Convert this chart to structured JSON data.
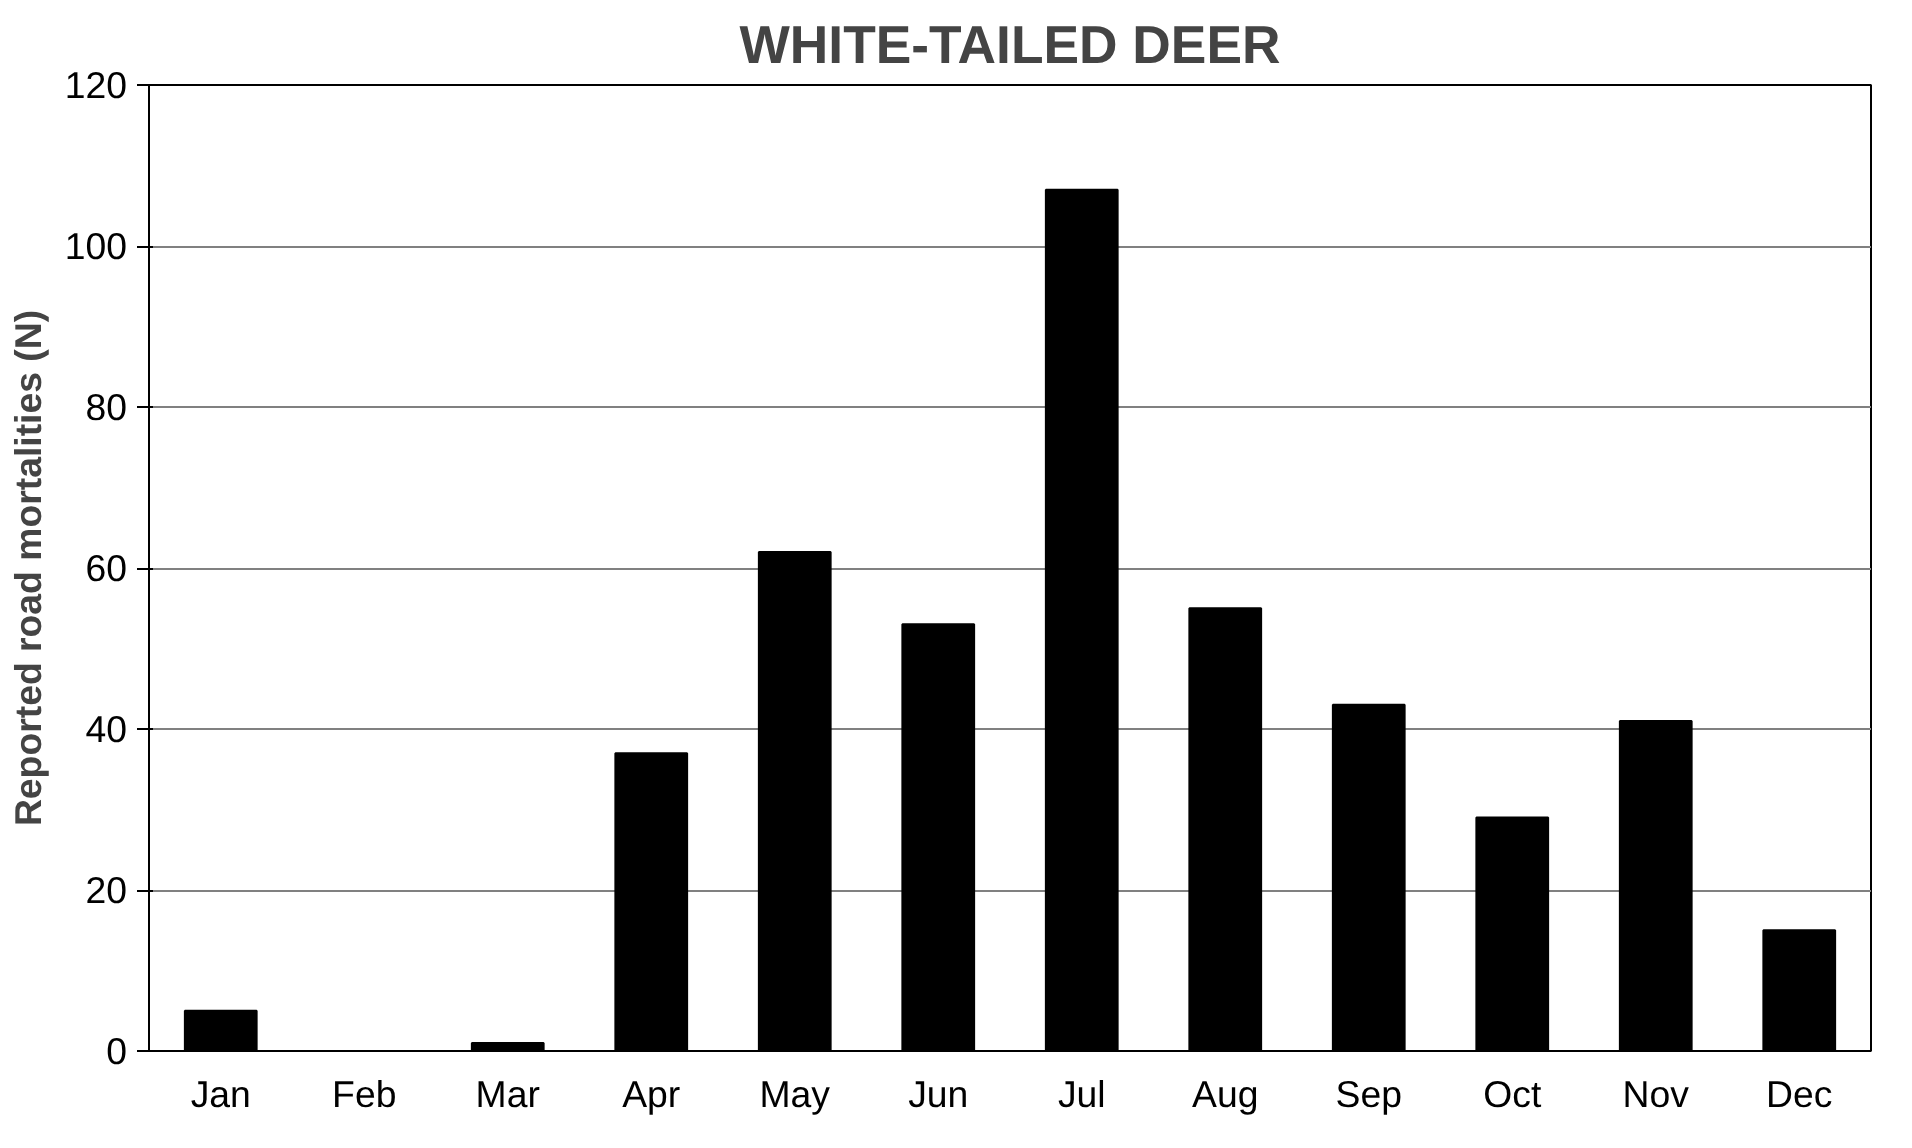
{
  "chart_data": {
    "type": "bar",
    "title": "WHITE-TAILED DEER",
    "ylabel": "Reported road mortalities (N)",
    "categories": [
      "Jan",
      "Feb",
      "Mar",
      "Apr",
      "May",
      "Jun",
      "Jul",
      "Aug",
      "Sep",
      "Oct",
      "Nov",
      "Dec"
    ],
    "values": [
      5,
      0,
      1,
      37,
      62,
      53,
      107,
      55,
      43,
      29,
      41,
      15
    ],
    "color": "#000000",
    "ylim": [
      0,
      120
    ],
    "yticks": [
      0,
      20,
      40,
      60,
      80,
      100,
      120
    ],
    "grid": "y"
  }
}
